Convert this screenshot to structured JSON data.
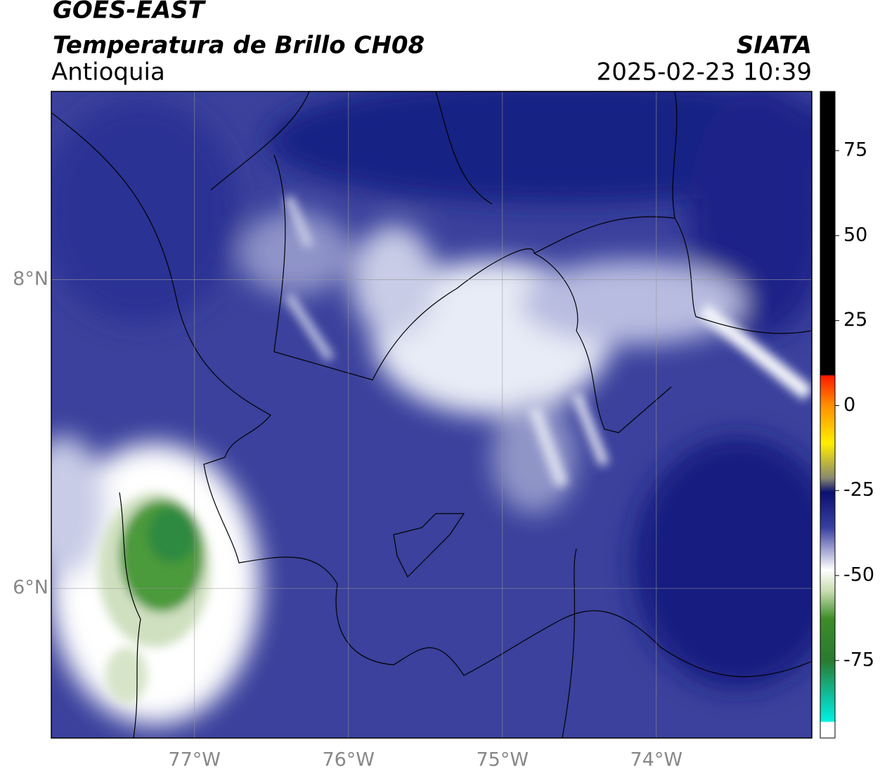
{
  "header": {
    "source": "GOES-EAST",
    "title": "Temperatura de Brillo CH08",
    "agency": "SIATA",
    "region": "Antioquia",
    "datetime": "2025-02-23 10:39"
  },
  "map": {
    "lonlim": [
      -77.93,
      -72.99
    ],
    "latlim": [
      5.03,
      9.22
    ],
    "lon_ticks": [
      {
        "value": -77,
        "label": "77°W"
      },
      {
        "value": -76,
        "label": "76°W"
      },
      {
        "value": -75,
        "label": "75°W"
      },
      {
        "value": -74,
        "label": "74°W"
      }
    ],
    "lat_ticks": [
      {
        "value": 8,
        "label": "8°N"
      },
      {
        "value": 6,
        "label": "6°N"
      }
    ]
  },
  "colorbar": {
    "lim": [
      -97.8,
      92.4
    ],
    "ticks": [
      75,
      50,
      25,
      0,
      -25,
      -50,
      -75
    ]
  }
}
